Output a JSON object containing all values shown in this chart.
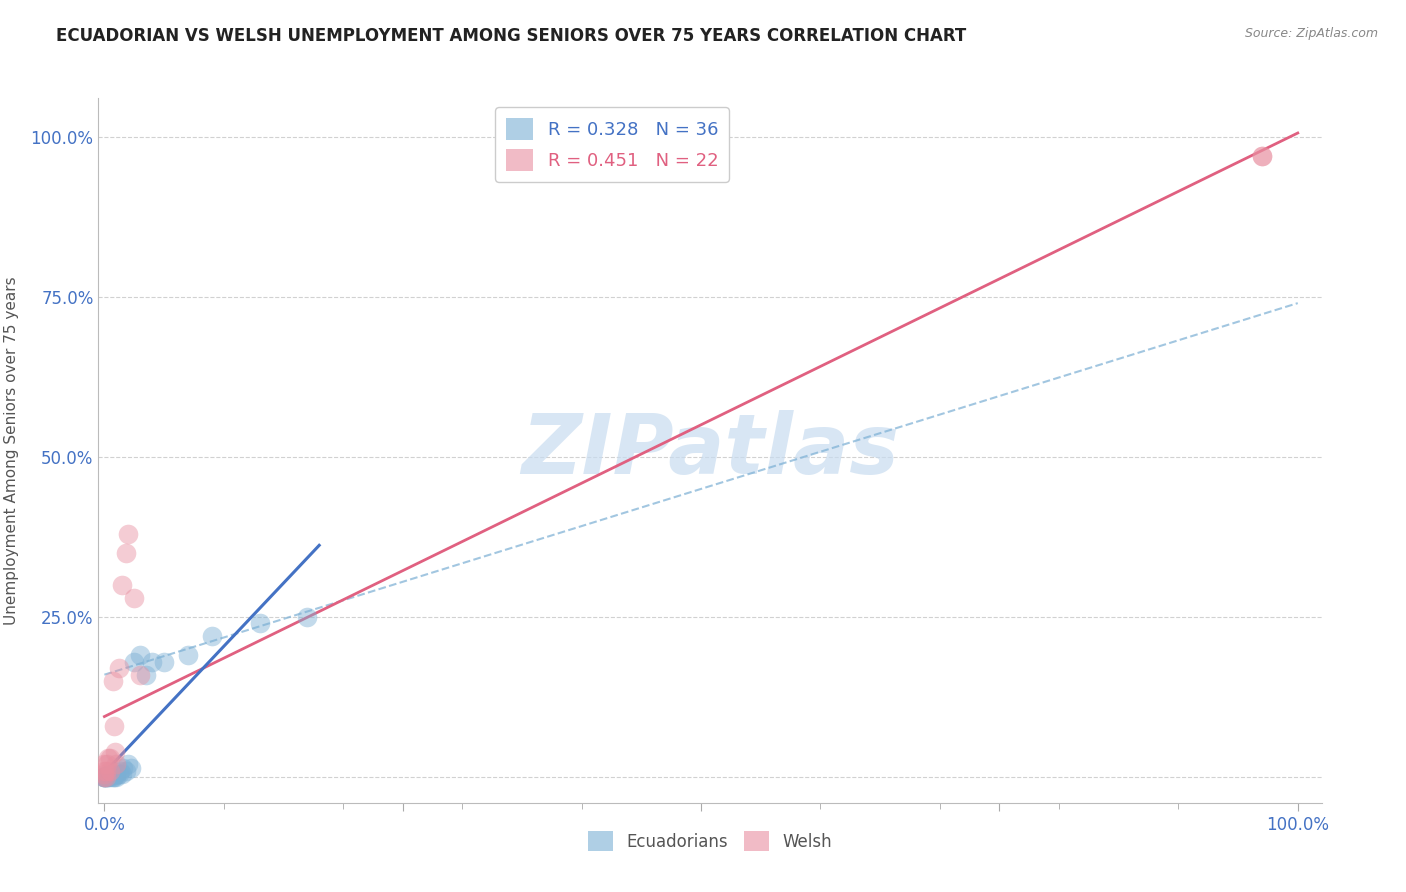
{
  "title": "ECUADORIAN VS WELSH UNEMPLOYMENT AMONG SENIORS OVER 75 YEARS CORRELATION CHART",
  "source": "Source: ZipAtlas.com",
  "ylabel": "Unemployment Among Seniors over 75 years",
  "r_ecuadorian": 0.328,
  "n_ecuadorian": 36,
  "r_welsh": 0.451,
  "n_welsh": 22,
  "blue_color": "#7BAFD4",
  "pink_color": "#E88FA0",
  "blue_line_color": "#4472C4",
  "pink_line_color": "#E06080",
  "blue_dash_color": "#7BAFD4",
  "watermark_color": "#C8DCF0",
  "background_color": "#ffffff",
  "ecu_x": [
    0.0,
    0.0,
    0.0,
    0.0,
    0.0,
    0.001,
    0.001,
    0.002,
    0.002,
    0.003,
    0.003,
    0.005,
    0.005,
    0.007,
    0.007,
    0.008,
    0.008,
    0.01,
    0.01,
    0.01,
    0.012,
    0.013,
    0.015,
    0.016,
    0.018,
    0.02,
    0.022,
    0.025,
    0.03,
    0.035,
    0.04,
    0.05,
    0.07,
    0.09,
    0.13,
    0.17
  ],
  "ecu_y": [
    0.0,
    0.0,
    0.0,
    0.001,
    0.002,
    0.0,
    0.001,
    0.0,
    0.002,
    0.0,
    0.003,
    0.0,
    0.003,
    0.0,
    0.005,
    0.001,
    0.004,
    0.0,
    0.003,
    0.008,
    0.005,
    0.01,
    0.005,
    0.015,
    0.01,
    0.02,
    0.015,
    0.18,
    0.19,
    0.16,
    0.18,
    0.18,
    0.19,
    0.22,
    0.24,
    0.25
  ],
  "welsh_x": [
    0.0,
    0.0,
    0.0,
    0.0,
    0.001,
    0.001,
    0.002,
    0.003,
    0.005,
    0.005,
    0.007,
    0.008,
    0.009,
    0.01,
    0.012,
    0.015,
    0.018,
    0.02,
    0.025,
    0.03,
    0.97,
    0.97
  ],
  "welsh_y": [
    0.0,
    0.005,
    0.01,
    0.02,
    0.0,
    0.01,
    0.02,
    0.03,
    0.01,
    0.03,
    0.15,
    0.08,
    0.04,
    0.02,
    0.17,
    0.3,
    0.35,
    0.38,
    0.28,
    0.16,
    0.97,
    0.97
  ],
  "xlim": [
    -0.005,
    1.02
  ],
  "ylim": [
    -0.04,
    1.06
  ]
}
